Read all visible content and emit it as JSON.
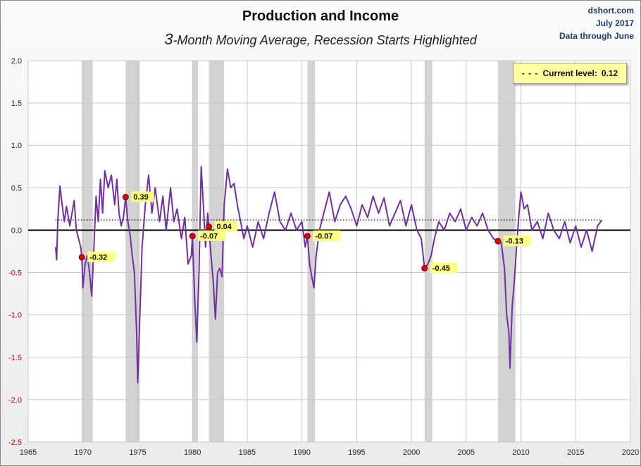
{
  "chart_data": {
    "type": "line",
    "title": "Production and Income",
    "subtitle_prefix": "3",
    "subtitle_rest": "-Month Moving Average, Recession Starts Highlighted",
    "source_lines": [
      "dshort.com",
      "July 2017",
      "Data through June"
    ],
    "legend": {
      "dash": "- - -",
      "label": "Current level:",
      "value": "0.12"
    },
    "current_level": 0.12,
    "xlim": [
      1965,
      2020
    ],
    "ylim": [
      -2.5,
      2.0
    ],
    "x_ticks": [
      "1965",
      "1970",
      "1975",
      "1980",
      "1985",
      "1990",
      "1995",
      "2000",
      "2005",
      "2010",
      "2015",
      "2020"
    ],
    "y_ticks": [
      "2.0",
      "1.5",
      "1.0",
      "0.5",
      "0.0",
      "-0.5",
      "-1.0",
      "-1.5",
      "-2.0",
      "-2.5"
    ],
    "recessions": [
      [
        1969.9,
        1970.9
      ],
      [
        1973.9,
        1975.2
      ],
      [
        1980.0,
        1980.5
      ],
      [
        1981.5,
        1982.9
      ],
      [
        1990.5,
        1991.2
      ],
      [
        2001.2,
        2001.9
      ],
      [
        2007.9,
        2009.5
      ]
    ],
    "recession_starts": [
      {
        "x": 1969.9,
        "y": -0.32,
        "label": "-0.32"
      },
      {
        "x": 1973.9,
        "y": 0.39,
        "label": "0.39"
      },
      {
        "x": 1980.0,
        "y": -0.07,
        "label": "-0.07"
      },
      {
        "x": 1981.5,
        "y": 0.04,
        "label": "0.04"
      },
      {
        "x": 1990.5,
        "y": -0.07,
        "label": "-0.07"
      },
      {
        "x": 2001.2,
        "y": -0.45,
        "label": "-0.45"
      },
      {
        "x": 2007.9,
        "y": -0.13,
        "label": "-0.13"
      }
    ],
    "series": [
      {
        "name": "Production and Income 3MMA",
        "x": [
          1967.5,
          1967.6,
          1967.7,
          1967.9,
          1968.1,
          1968.3,
          1968.5,
          1968.8,
          1969.0,
          1969.2,
          1969.4,
          1969.6,
          1969.8,
          1969.9,
          1970.0,
          1970.2,
          1970.4,
          1970.6,
          1970.8,
          1971.0,
          1971.2,
          1971.4,
          1971.6,
          1971.8,
          1972.0,
          1972.3,
          1972.6,
          1972.9,
          1973.1,
          1973.3,
          1973.5,
          1973.7,
          1973.9,
          1974.1,
          1974.3,
          1974.5,
          1974.7,
          1974.9,
          1975.0,
          1975.2,
          1975.4,
          1975.7,
          1976.0,
          1976.3,
          1976.6,
          1977.0,
          1977.3,
          1977.6,
          1978.0,
          1978.3,
          1978.6,
          1979.0,
          1979.3,
          1979.6,
          1979.9,
          1980.0,
          1980.2,
          1980.4,
          1980.6,
          1980.8,
          1981.0,
          1981.2,
          1981.4,
          1981.5,
          1981.7,
          1981.9,
          1982.1,
          1982.3,
          1982.5,
          1982.7,
          1982.9,
          1983.2,
          1983.5,
          1983.8,
          1984.1,
          1984.4,
          1984.7,
          1985.0,
          1985.5,
          1986.0,
          1986.5,
          1987.0,
          1987.5,
          1988.0,
          1988.5,
          1989.0,
          1989.5,
          1990.0,
          1990.3,
          1990.5,
          1990.7,
          1990.9,
          1991.1,
          1991.3,
          1991.6,
          1992.0,
          1992.5,
          1993.0,
          1993.5,
          1994.0,
          1994.5,
          1995.0,
          1995.5,
          1996.0,
          1996.5,
          1997.0,
          1997.5,
          1998.0,
          1998.5,
          1999.0,
          1999.5,
          2000.0,
          2000.5,
          2000.9,
          2001.2,
          2001.5,
          2001.8,
          2002.1,
          2002.5,
          2003.0,
          2003.5,
          2004.0,
          2004.5,
          2005.0,
          2005.5,
          2006.0,
          2006.5,
          2007.0,
          2007.5,
          2007.9,
          2008.2,
          2008.5,
          2008.7,
          2008.9,
          2009.0,
          2009.2,
          2009.4,
          2009.6,
          2009.8,
          2010.0,
          2010.3,
          2010.6,
          2011.0,
          2011.5,
          2012.0,
          2012.5,
          2013.0,
          2013.5,
          2014.0,
          2014.5,
          2015.0,
          2015.5,
          2016.0,
          2016.5,
          2017.0,
          2017.4
        ],
        "y": [
          -0.2,
          -0.35,
          0.1,
          0.52,
          0.3,
          0.1,
          0.28,
          0.05,
          0.2,
          0.35,
          0.0,
          -0.1,
          -0.2,
          -0.32,
          -0.68,
          -0.4,
          -0.3,
          -0.5,
          -0.78,
          -0.2,
          0.4,
          0.1,
          0.6,
          0.2,
          0.7,
          0.5,
          0.65,
          0.3,
          0.6,
          0.2,
          0.05,
          0.15,
          0.39,
          0.1,
          -0.05,
          -0.3,
          -0.5,
          -1.2,
          -1.8,
          -1.0,
          -0.2,
          0.3,
          0.65,
          0.2,
          0.5,
          0.1,
          0.4,
          0.0,
          0.5,
          0.1,
          0.25,
          -0.1,
          0.15,
          -0.4,
          -0.3,
          -0.07,
          -0.8,
          -1.32,
          -0.5,
          0.75,
          0.3,
          -0.2,
          0.2,
          0.04,
          -0.3,
          -0.6,
          -1.05,
          -0.5,
          -0.45,
          -0.55,
          0.3,
          0.72,
          0.5,
          0.55,
          0.3,
          0.1,
          -0.1,
          0.05,
          -0.2,
          0.1,
          -0.1,
          0.2,
          0.45,
          0.1,
          0.0,
          0.2,
          0.0,
          0.1,
          -0.2,
          -0.07,
          -0.4,
          -0.55,
          -0.68,
          -0.3,
          0.0,
          0.2,
          0.45,
          0.1,
          0.3,
          0.4,
          0.25,
          0.05,
          0.3,
          0.15,
          0.4,
          0.2,
          0.38,
          0.05,
          0.2,
          0.35,
          0.05,
          0.3,
          0.0,
          -0.1,
          -0.45,
          -0.4,
          -0.3,
          -0.1,
          0.1,
          0.0,
          0.2,
          0.1,
          0.25,
          0.0,
          0.15,
          0.05,
          0.2,
          0.0,
          -0.1,
          -0.13,
          -0.15,
          -0.45,
          -1.0,
          -1.2,
          -1.63,
          -0.9,
          -0.6,
          -0.2,
          0.15,
          0.45,
          0.25,
          0.3,
          0.0,
          0.1,
          -0.1,
          0.2,
          0.0,
          -0.1,
          0.1,
          -0.15,
          0.05,
          -0.2,
          0.0,
          -0.25,
          0.05,
          0.12
        ]
      }
    ]
  }
}
